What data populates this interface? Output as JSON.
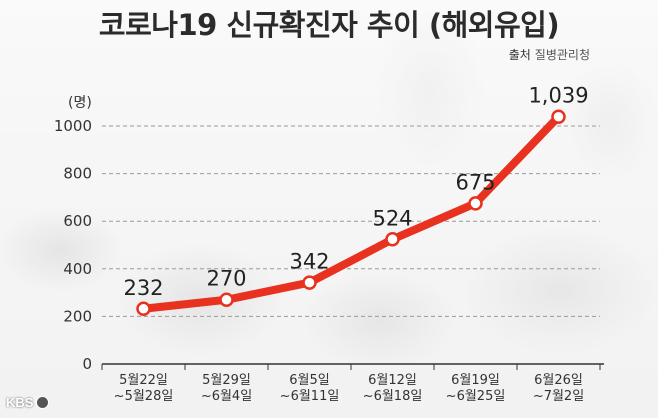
{
  "header": {
    "title": "코로나19 신규확진자 추이 (해외유입)",
    "source_label": "출처",
    "source_name": "질병관리청"
  },
  "footer": {
    "logo_text": "KBS"
  },
  "chart_data": {
    "type": "line",
    "title": "코로나19 신규확진자 추이 (해외유입)",
    "ylabel": "(명)",
    "xlabel": "",
    "ylim": [
      0,
      1000
    ],
    "yticks": [
      0,
      200,
      400,
      600,
      800,
      1000
    ],
    "categories": [
      [
        "5월22일",
        "~5월28일"
      ],
      [
        "5월29일",
        "~6월4일"
      ],
      [
        "6월5일",
        "~6월11일"
      ],
      [
        "6월12일",
        "~6월18일"
      ],
      [
        "6월19일",
        "~6월25일"
      ],
      [
        "6월26일",
        "~7월2일"
      ]
    ],
    "values": [
      232,
      270,
      342,
      524,
      675,
      1039
    ],
    "data_labels": [
      "232",
      "270",
      "342",
      "524",
      "675",
      "1,039"
    ],
    "grid": true,
    "line_color": "#e8311f",
    "marker_fill": "#ffffff"
  }
}
